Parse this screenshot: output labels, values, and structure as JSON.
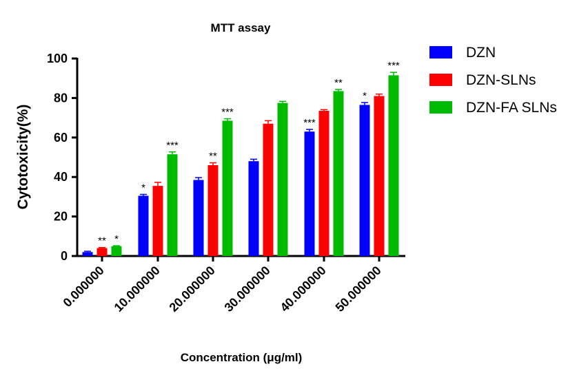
{
  "chart_data": {
    "type": "bar",
    "title": "MTT assay",
    "xlabel": "Concentration (μg/ml)",
    "ylabel": "Cytotoxicity(%)",
    "ylim": [
      0,
      100
    ],
    "yticks": [
      "0",
      "20",
      "40",
      "60",
      "80",
      "100"
    ],
    "categories": [
      "0.000000",
      "10.000000",
      "20.000000",
      "30.000000",
      "40.000000",
      "50.000000"
    ],
    "legend_position": "top-right",
    "grid": false,
    "series": [
      {
        "name": "DZN",
        "color": "#0000ff",
        "values": [
          2,
          30.5,
          38.5,
          48,
          63,
          76.5
        ],
        "errors": [
          0.4,
          0.7,
          1.2,
          1.0,
          1.1,
          1.2
        ],
        "significance": [
          "",
          "*",
          "",
          "",
          "***",
          "*"
        ]
      },
      {
        "name": "DZN-SLNs",
        "color": "#ff0000",
        "values": [
          4,
          35.5,
          46,
          67,
          73.5,
          81
        ],
        "errors": [
          0.3,
          1.8,
          1.2,
          1.5,
          0.6,
          1.0
        ],
        "significance": [
          "**",
          "",
          "**",
          "",
          "",
          ""
        ]
      },
      {
        "name": "DZN-FA SLNs",
        "color": "#00bb00",
        "values": [
          5,
          51.5,
          68.5,
          77.5,
          83.5,
          91.5
        ],
        "errors": [
          0.2,
          1.2,
          1.0,
          0.8,
          0.8,
          1.5
        ],
        "significance": [
          "*",
          "***",
          "***",
          "",
          "**",
          "***"
        ]
      }
    ]
  }
}
